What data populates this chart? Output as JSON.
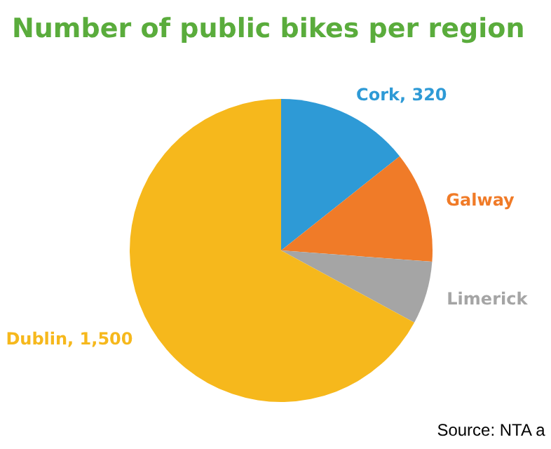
{
  "chart_data": {
    "type": "pie",
    "title": "Number of public bikes per region",
    "categories": [
      "Cork",
      "Galway",
      "Limerick",
      "Dublin"
    ],
    "values": [
      320,
      265,
      150,
      1500
    ],
    "value_labels": [
      "320",
      null,
      null,
      "1,500"
    ],
    "colors": [
      "#2e9ad6",
      "#f07b28",
      "#a5a5a5",
      "#f6b81c"
    ],
    "annotations": [
      "Source: NTA a"
    ]
  }
}
